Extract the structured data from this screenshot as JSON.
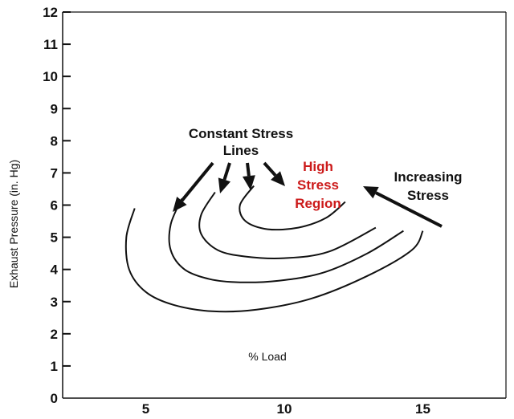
{
  "chart_data": {
    "type": "line",
    "title": "",
    "xlabel": "% Load",
    "ylabel": "Exhaust Pressure (in. Hg)",
    "xlim": [
      2,
      18
    ],
    "ylim": [
      0,
      12
    ],
    "x_ticks": [
      5,
      10,
      15
    ],
    "y_ticks": [
      0,
      1,
      2,
      3,
      4,
      5,
      6,
      7,
      8,
      9,
      10,
      11,
      12
    ],
    "grid": false,
    "series": [
      {
        "x": [
          4.6,
          4.3,
          4.4,
          5.0,
          6.0,
          7.4,
          9.0,
          11.0,
          13.0,
          14.6,
          15.0
        ],
        "y": [
          5.9,
          5.0,
          4.0,
          3.3,
          2.9,
          2.7,
          2.75,
          3.1,
          3.8,
          4.6,
          5.2
        ]
      },
      {
        "x": [
          6.3,
          5.9,
          5.9,
          6.4,
          7.3,
          8.4,
          9.8,
          11.4,
          13.0,
          14.3
        ],
        "y": [
          6.2,
          5.4,
          4.6,
          4.0,
          3.7,
          3.6,
          3.65,
          3.9,
          4.5,
          5.2
        ]
      },
      {
        "x": [
          7.5,
          7.0,
          7.0,
          7.6,
          8.6,
          10.0,
          11.6,
          13.3
        ],
        "y": [
          6.4,
          5.7,
          5.1,
          4.6,
          4.4,
          4.35,
          4.55,
          5.3
        ]
      },
      {
        "x": [
          8.9,
          8.4,
          8.6,
          9.4,
          10.5,
          11.5,
          12.2
        ],
        "y": [
          6.6,
          6.0,
          5.5,
          5.25,
          5.3,
          5.6,
          6.1
        ]
      }
    ]
  },
  "annotations": {
    "constant_line1": "Constant Stress",
    "constant_line2": "Lines",
    "high_line1": "High",
    "high_line2": "Stress",
    "high_line3": "Region",
    "increasing_line1": "Increasing",
    "increasing_line2": "Stress"
  },
  "colors": {
    "axis": "#111111",
    "curve": "#111111",
    "highlight": "#cc1a1a"
  }
}
